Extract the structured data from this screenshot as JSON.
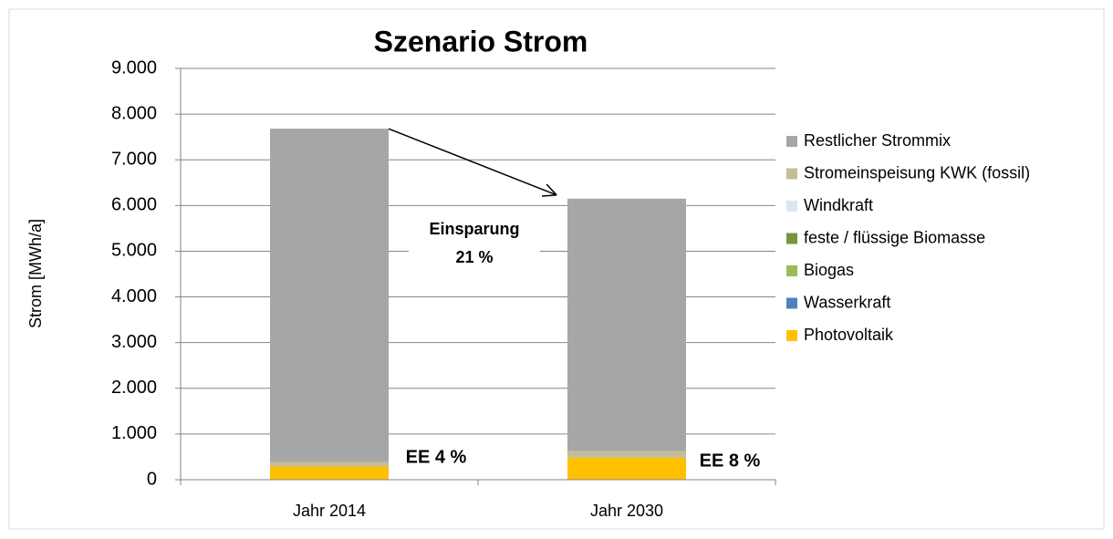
{
  "chart_data": {
    "type": "stacked_bar",
    "title": "Szenario Strom",
    "y_label": "Strom [MWh/a]",
    "categories": [
      "Jahr 2014",
      "Jahr 2030"
    ],
    "series": [
      {
        "name": "Photovoltaik",
        "color": "#ffc000",
        "values": [
          290,
          480
        ]
      },
      {
        "name": "Wasserkraft",
        "color": "#4f81bd",
        "values": [
          0,
          0
        ]
      },
      {
        "name": "Biogas",
        "color": "#9bbb59",
        "values": [
          0,
          0
        ]
      },
      {
        "name": "feste / flüssige Biomasse",
        "color": "#77933c",
        "values": [
          0,
          0
        ]
      },
      {
        "name": "Windkraft",
        "color": "#dce6f2",
        "values": [
          0,
          0
        ]
      },
      {
        "name": "Stromeinspeisung KWK (fossil)",
        "color": "#c4bd97",
        "values": [
          100,
          150
        ]
      },
      {
        "name": "Restlicher Strommix",
        "color": "#a6a6a6",
        "values": [
          7290,
          5520
        ]
      }
    ],
    "ylim": [
      0,
      9000
    ],
    "yticks": [
      0,
      {
        "value": 1000,
        "label": "1.000"
      },
      {
        "value": 2000,
        "label": "2.000"
      },
      {
        "value": 3000,
        "label": "3.000"
      },
      {
        "value": 4000,
        "label": "4.000"
      },
      {
        "value": 5000,
        "label": "5.000"
      },
      {
        "value": 6000,
        "label": "6.000"
      },
      {
        "value": 7000,
        "label": "7.000"
      },
      {
        "value": 8000,
        "label": "8.000"
      },
      {
        "value": 9000,
        "label": "9.000"
      }
    ],
    "grid": true,
    "annotations": [
      "Einsparung",
      "21 %",
      "EE 4 %",
      "EE 8 %"
    ]
  }
}
